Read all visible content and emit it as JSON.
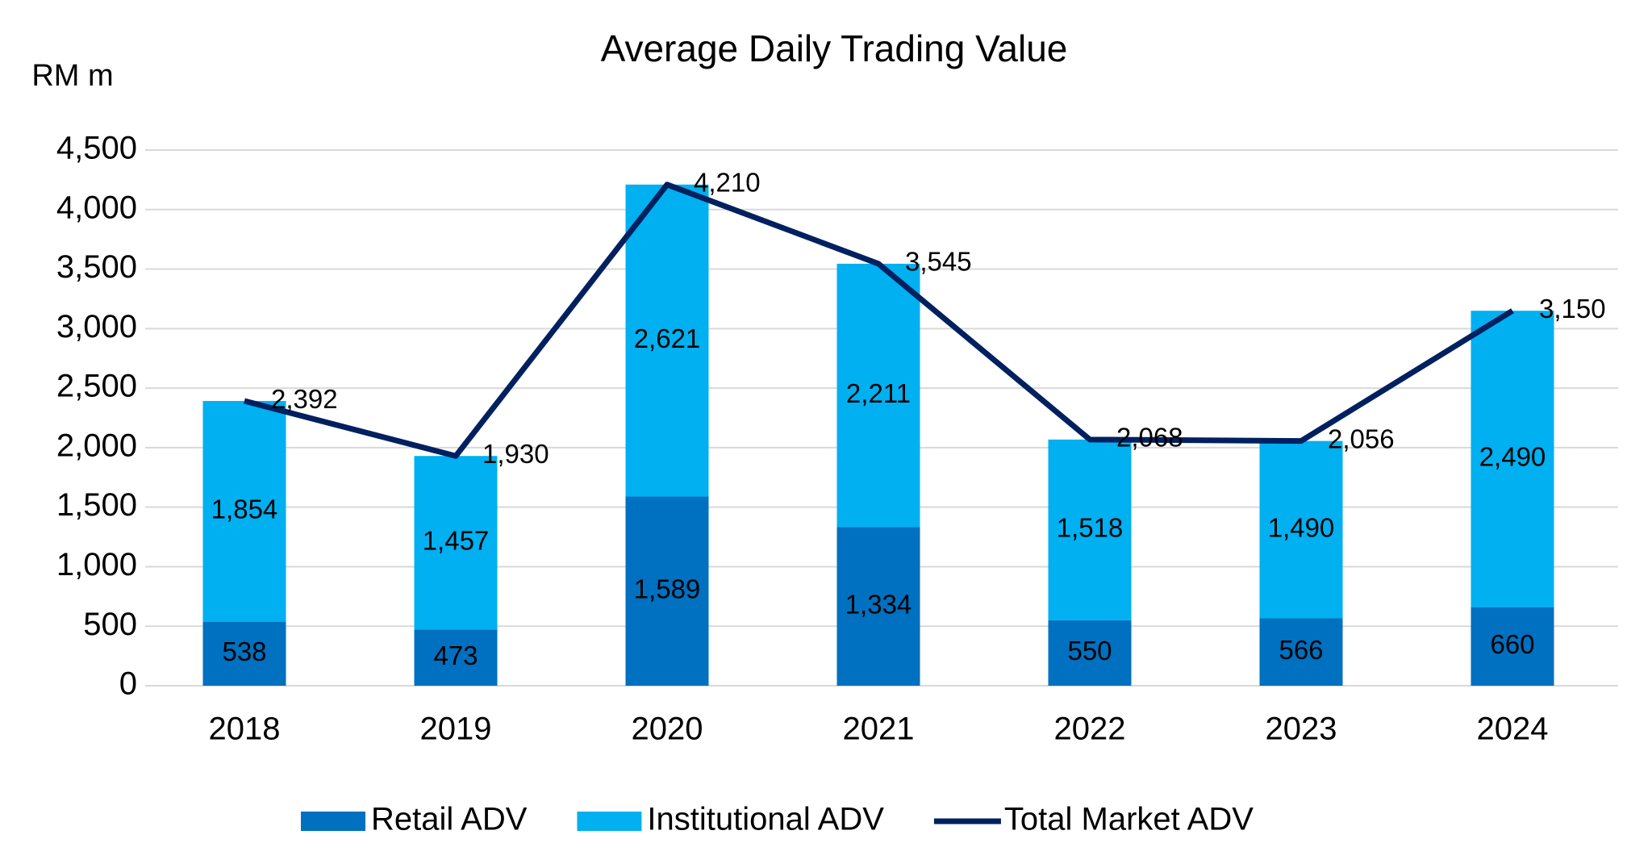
{
  "chart_data": {
    "type": "bar",
    "stacked": true,
    "title": "Average Daily Trading Value",
    "y_label": "RM m",
    "categories": [
      "2018",
      "2019",
      "2020",
      "2021",
      "2022",
      "2023",
      "2024"
    ],
    "series": [
      {
        "name": "Retail ADV",
        "type": "bar",
        "color": "#0070c0",
        "values": [
          538,
          473,
          1589,
          1334,
          550,
          566,
          660
        ],
        "value_labels": [
          "538",
          "473",
          "1,589",
          "1,334",
          "550",
          "566",
          "660"
        ]
      },
      {
        "name": "Institutional ADV",
        "type": "bar",
        "color": "#00b0f0",
        "values": [
          1854,
          1457,
          2621,
          2211,
          1518,
          1490,
          2490
        ],
        "value_labels": [
          "1,854",
          "1,457",
          "2,621",
          "2,211",
          "1,518",
          "1,490",
          "2,490"
        ]
      },
      {
        "name": "Total Market ADV",
        "type": "line",
        "color": "#002060",
        "values": [
          2392,
          1930,
          4210,
          3545,
          2068,
          2056,
          3150
        ],
        "value_labels": [
          "2,392",
          "1,930",
          "4,210",
          "3,545",
          "2,068",
          "2,056",
          "3,150"
        ]
      }
    ],
    "ylim": [
      0,
      4500
    ],
    "yticks": [
      0,
      500,
      {
        "value": 1000,
        "label": "1,000"
      },
      {
        "value": 1500,
        "label": "1,500"
      },
      {
        "value": 2000,
        "label": "2,000"
      },
      {
        "value": 2500,
        "label": "2,500"
      },
      {
        "value": 3000,
        "label": "3,000"
      },
      {
        "value": 3500,
        "label": "3,500"
      },
      {
        "value": 4000,
        "label": "4,000"
      },
      {
        "value": 4500,
        "label": "4,500"
      }
    ],
    "grid": true,
    "legend": "bottom"
  }
}
